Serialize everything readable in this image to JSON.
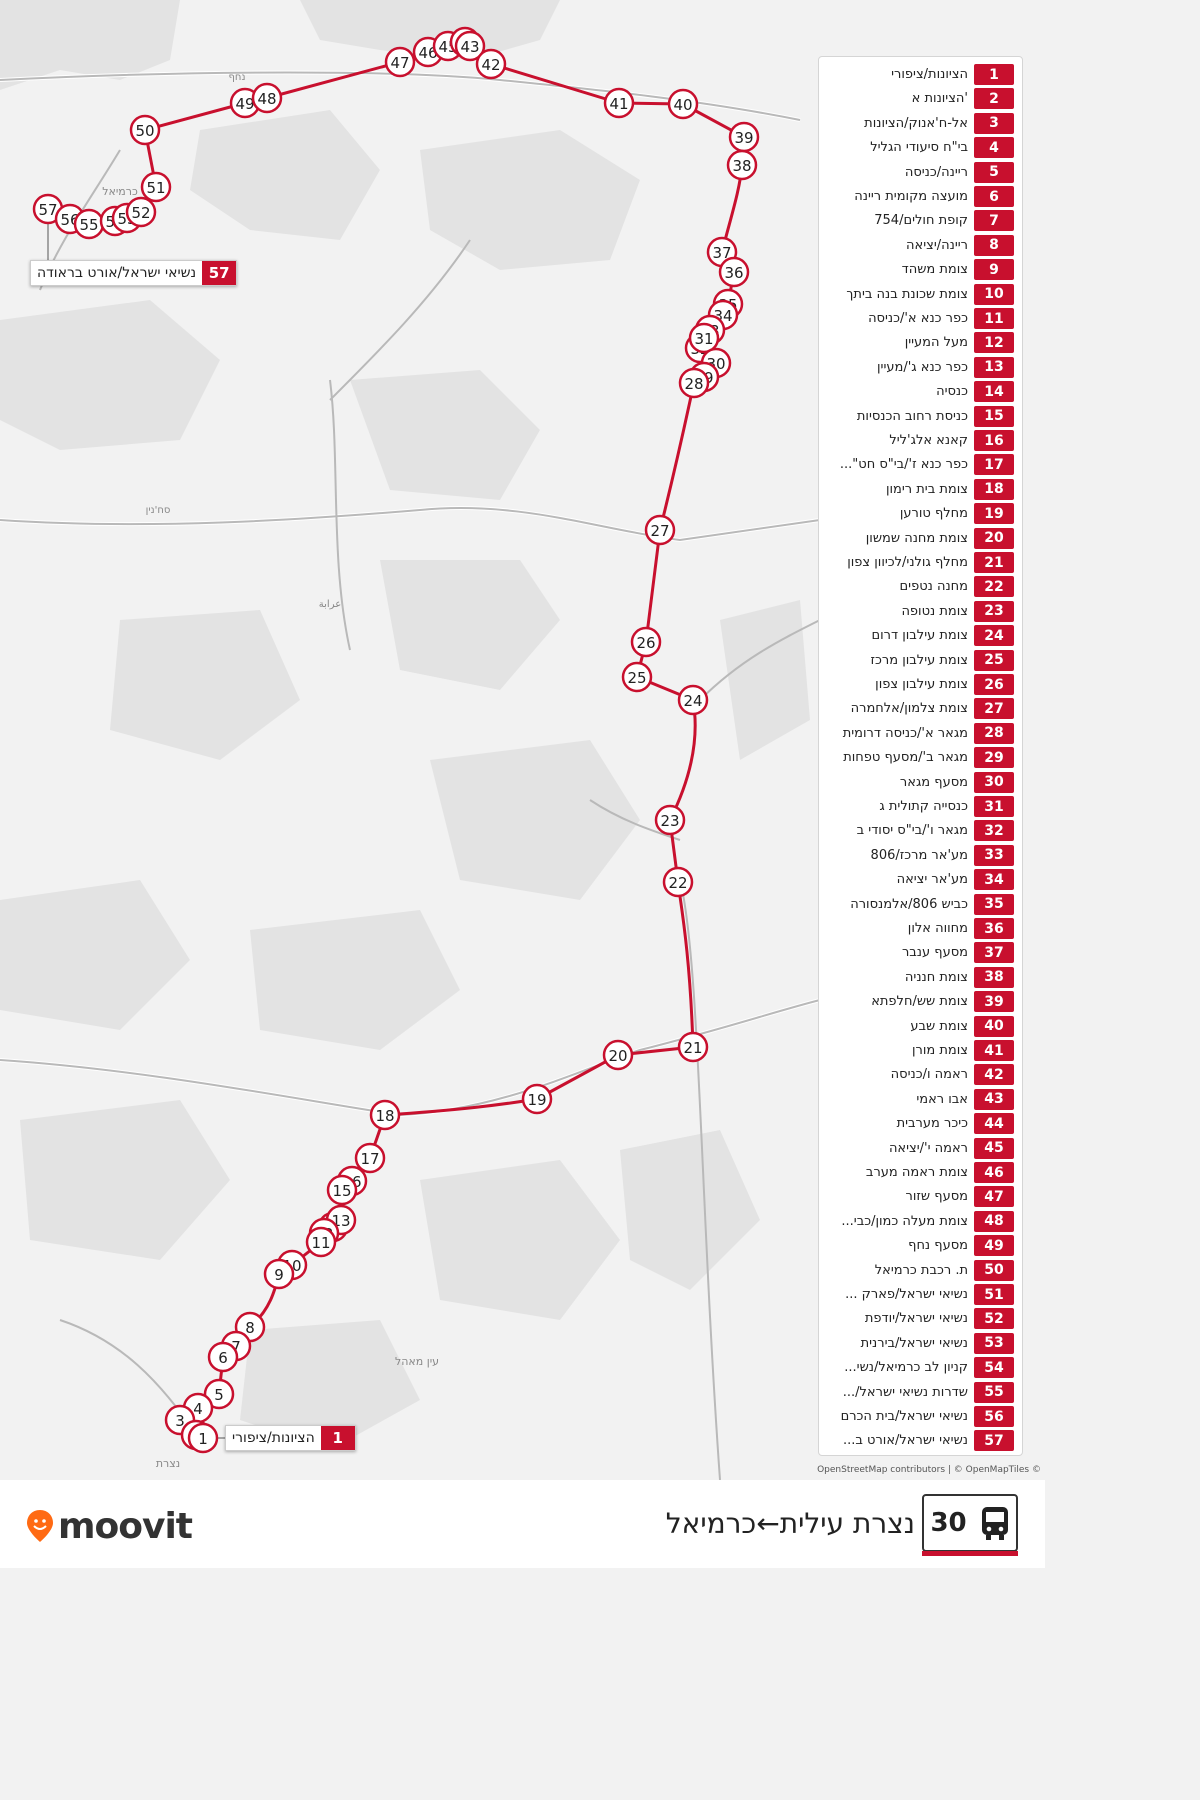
{
  "route": {
    "number": "30",
    "title": "נצרת עילית←כרמיאל",
    "color": "#c8102e"
  },
  "brand": {
    "name": "moovit",
    "icon": "moovit-pin-icon",
    "color": "#ff6a13"
  },
  "attribution": "OpenStreetMap contributors | © OpenMapTiles ©",
  "map_labels": [
    "כרמיאל",
    "נחף",
    "עין מאהל",
    "נצרת",
    "סח'נין",
    "عرابة"
  ],
  "callouts": {
    "start": {
      "num": "1",
      "name": "הציונות/ציפורי"
    },
    "end": {
      "num": "57",
      "name": "נשיאי ישראל/אורט בראודה"
    }
  },
  "stops": [
    {
      "num": "1",
      "name": "הציונות/ציפורי"
    },
    {
      "num": "2",
      "name": "'הציונות א"
    },
    {
      "num": "3",
      "name": "אל-ח'אנוק/הציונות"
    },
    {
      "num": "4",
      "name": "בי\"ח סיעודי הגליל"
    },
    {
      "num": "5",
      "name": "ריינה/כניסה"
    },
    {
      "num": "6",
      "name": "מועצה מקומית ריינה"
    },
    {
      "num": "7",
      "name": "קופת חולים/754"
    },
    {
      "num": "8",
      "name": "ריינה/יציאה"
    },
    {
      "num": "9",
      "name": "צומת משהד"
    },
    {
      "num": "10",
      "name": "צומת שכונת בנה ביתך"
    },
    {
      "num": "11",
      "name": "כפר כנא א'/כניסה"
    },
    {
      "num": "12",
      "name": "מעל המעיין"
    },
    {
      "num": "13",
      "name": "כפר כנא ג'/מעיין"
    },
    {
      "num": "14",
      "name": "כנסיה"
    },
    {
      "num": "15",
      "name": "כניסת רחוב הכנסיות"
    },
    {
      "num": "16",
      "name": "קאנא אלג'ליל"
    },
    {
      "num": "17",
      "name": "כפר כנא ז'/בי\"ס חט\"..."
    },
    {
      "num": "18",
      "name": "צומת בית רימון"
    },
    {
      "num": "19",
      "name": "מחלף טורען"
    },
    {
      "num": "20",
      "name": "צומת מחנה שמשון"
    },
    {
      "num": "21",
      "name": "מחלף גולני/לכיוון צפון"
    },
    {
      "num": "22",
      "name": "מחנה נטפים"
    },
    {
      "num": "23",
      "name": "צומת נטופה"
    },
    {
      "num": "24",
      "name": "צומת עילבון דרום"
    },
    {
      "num": "25",
      "name": "צומת עילבון מרכז"
    },
    {
      "num": "26",
      "name": "צומת עילבון צפון"
    },
    {
      "num": "27",
      "name": "צומת צלמון/אלחמרה"
    },
    {
      "num": "28",
      "name": "מגאר א'/כניסה דרומית"
    },
    {
      "num": "29",
      "name": "מגאר ב'/מסעף טפחות"
    },
    {
      "num": "30",
      "name": "מסעף מגאר"
    },
    {
      "num": "31",
      "name": "כנסייה קתולית ג"
    },
    {
      "num": "32",
      "name": "מגאר ו'/בי\"ס יסודי ב"
    },
    {
      "num": "33",
      "name": "מע'אר מרכז/806"
    },
    {
      "num": "34",
      "name": "מע'אר יציאה"
    },
    {
      "num": "35",
      "name": "כביש 806/אלמנסורה"
    },
    {
      "num": "36",
      "name": "מחווה אלון"
    },
    {
      "num": "37",
      "name": "מסעף ענבר"
    },
    {
      "num": "38",
      "name": "צומת חנניה"
    },
    {
      "num": "39",
      "name": "צומת שש/חלפתא"
    },
    {
      "num": "40",
      "name": "צומת שבע"
    },
    {
      "num": "41",
      "name": "צומת מורן"
    },
    {
      "num": "42",
      "name": "ראמה ו/כניסה"
    },
    {
      "num": "43",
      "name": "אבו ראמי"
    },
    {
      "num": "44",
      "name": "כיכר מערבית"
    },
    {
      "num": "45",
      "name": "ראמה י'/יציאה"
    },
    {
      "num": "46",
      "name": "צומת ראמה מערב"
    },
    {
      "num": "47",
      "name": "מסעף שזור"
    },
    {
      "num": "48",
      "name": "צומת מעלה כמון/כבי..."
    },
    {
      "num": "49",
      "name": "מסעף נחף"
    },
    {
      "num": "50",
      "name": "ת. רכבת כרמיאל"
    },
    {
      "num": "51",
      "name": "נשיאי ישראל/פארק ..."
    },
    {
      "num": "52",
      "name": "נשיאי ישראל/יודפת"
    },
    {
      "num": "53",
      "name": "נשיאי ישראל/בירנית"
    },
    {
      "num": "54",
      "name": "קניון לב כרמיאל/נשי..."
    },
    {
      "num": "55",
      "name": "שדרות נשיאי ישראל/..."
    },
    {
      "num": "56",
      "name": "נשיאי ישראל/בית הכרם"
    },
    {
      "num": "57",
      "name": "נשיאי ישראל/אורט ב..."
    }
  ]
}
